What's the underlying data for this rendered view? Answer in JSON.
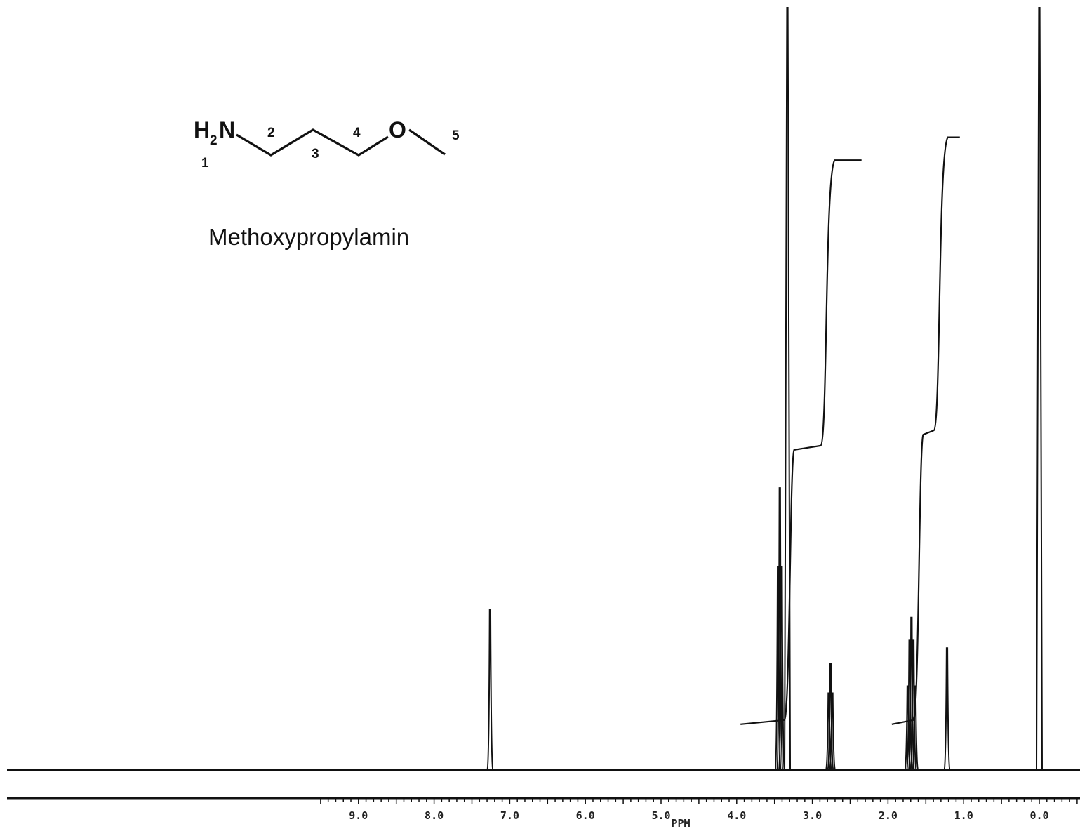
{
  "molecule": {
    "atoms": {
      "n": "N",
      "o": "O"
    },
    "numbers": [
      "1",
      "2",
      "3",
      "4",
      "5"
    ],
    "name": "Methoxypropylamin"
  },
  "chart_data": {
    "type": "line",
    "x_axis": {
      "unit_label": "PPM",
      "range": [
        9.5,
        -0.2
      ],
      "reversed": true,
      "major_ticks": [
        9.0,
        8.0,
        7.0,
        6.0,
        5.0,
        4.0,
        3.0,
        2.0,
        1.0,
        0.0
      ],
      "tick_labels": [
        "9.0",
        "8.0",
        "7.0",
        "6.0",
        "5.0",
        "4.0",
        "3.0",
        "2.0",
        "1.0",
        "0.0"
      ]
    },
    "grid": false,
    "legend": "none",
    "peaks": [
      {
        "ppm": 7.26,
        "intensity": 0.21,
        "multiplicity": "singlet"
      },
      {
        "ppm": 3.43,
        "intensity": 0.37,
        "multiplicity": "triplet"
      },
      {
        "ppm": 3.33,
        "intensity": 1.0,
        "multiplicity": "singlet"
      },
      {
        "ppm": 2.76,
        "intensity": 0.14,
        "multiplicity": "triplet"
      },
      {
        "ppm": 1.69,
        "intensity": 0.2,
        "multiplicity": "quintet"
      },
      {
        "ppm": 1.22,
        "intensity": 0.16,
        "multiplicity": "singlet"
      },
      {
        "ppm": 0.0,
        "intensity": 1.0,
        "multiplicity": "singlet"
      }
    ],
    "integrals": [
      {
        "from_ppm": 3.95,
        "to_ppm": 2.35,
        "steps": [
          0.06,
          0.42,
          0.8
        ]
      },
      {
        "from_ppm": 1.95,
        "to_ppm": 1.05,
        "steps": [
          0.06,
          0.44,
          0.83
        ]
      }
    ],
    "colors": {
      "trace": "#111111",
      "background": "#ffffff"
    }
  }
}
